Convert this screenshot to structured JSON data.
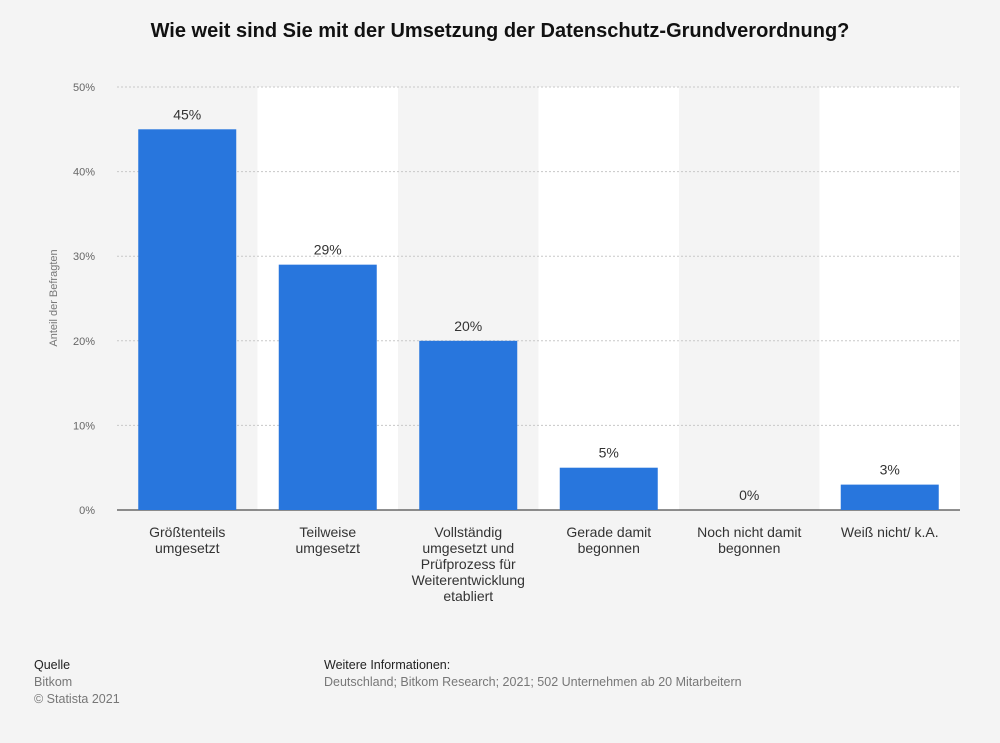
{
  "chart_data": {
    "type": "bar",
    "title": "Wie weit sind Sie mit der Umsetzung der Datenschutz-Grundverordnung?",
    "ylabel": "Anteil der Befragten",
    "xlabel": "",
    "ylim": [
      0,
      50
    ],
    "yticks": [
      "0%",
      "10%",
      "20%",
      "30%",
      "40%",
      "50%"
    ],
    "ytick_values": [
      0,
      10,
      20,
      30,
      40,
      50
    ],
    "grid": true,
    "bar_color": "#2876dd",
    "categories": [
      [
        "Größtenteils",
        "umgesetzt"
      ],
      [
        "Teilweise",
        "umgesetzt"
      ],
      [
        "Vollständig",
        "umgesetzt und",
        "Prüfprozess für",
        "Weiterentwicklung",
        "etabliert"
      ],
      [
        "Gerade damit",
        "begonnen"
      ],
      [
        "Noch nicht damit",
        "begonnen"
      ],
      [
        "Weiß nicht/ k.A."
      ]
    ],
    "values": [
      45,
      29,
      20,
      5,
      0,
      3
    ],
    "value_labels": [
      "45%",
      "29%",
      "20%",
      "5%",
      "0%",
      "3%"
    ]
  },
  "footer": {
    "source_heading": "Quelle",
    "source": "Bitkom",
    "copyright": "© Statista 2021",
    "info_heading": "Weitere Informationen:",
    "info": "Deutschland; Bitkom Research; 2021; 502 Unternehmen ab 20 Mitarbeitern"
  }
}
